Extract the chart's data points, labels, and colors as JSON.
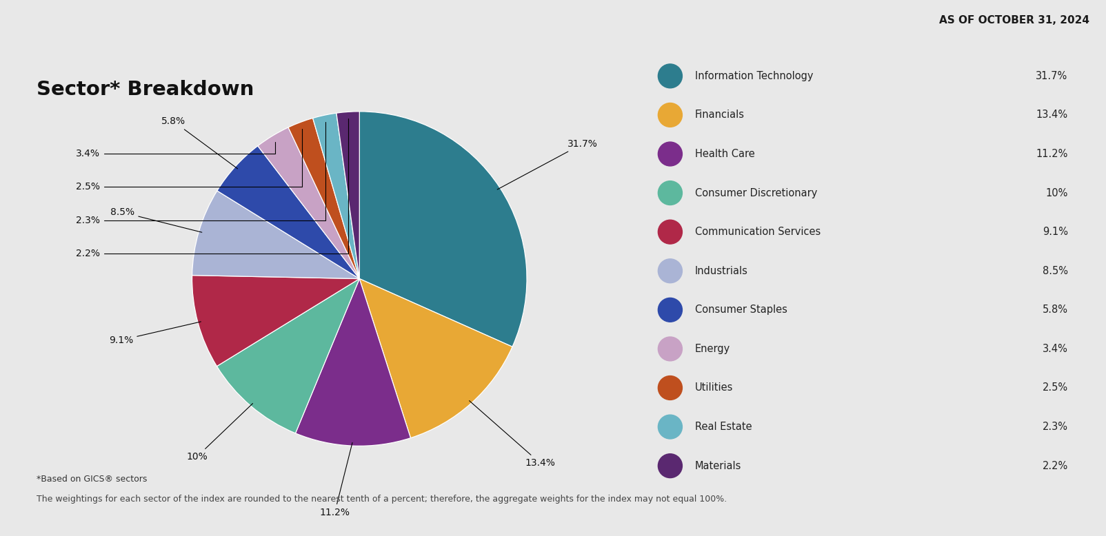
{
  "title": "Sector* Breakdown",
  "header": "AS OF OCTOBER 31, 2024",
  "bg_color": "#e8e8e8",
  "white_color": "#ffffff",
  "sectors": [
    {
      "name": "Information Technology",
      "value": 31.7,
      "color": "#2d7d8e",
      "label": "31.7%"
    },
    {
      "name": "Financials",
      "value": 13.4,
      "color": "#e8a835",
      "label": "13.4%"
    },
    {
      "name": "Health Care",
      "value": 11.2,
      "color": "#7b2d8b",
      "label": "11.2%"
    },
    {
      "name": "Consumer Discretionary",
      "value": 10.0,
      "color": "#5db89e",
      "label": "10%"
    },
    {
      "name": "Communication Services",
      "value": 9.1,
      "color": "#b02848",
      "label": "9.1%"
    },
    {
      "name": "Industrials",
      "value": 8.5,
      "color": "#aab4d5",
      "label": "8.5%"
    },
    {
      "name": "Consumer Staples",
      "value": 5.8,
      "color": "#2e4aaa",
      "label": "5.8%"
    },
    {
      "name": "Energy",
      "value": 3.4,
      "color": "#c8a2c5",
      "label": "3.4%"
    },
    {
      "name": "Utilities",
      "value": 2.5,
      "color": "#bf4f1e",
      "label": "2.5%"
    },
    {
      "name": "Real Estate",
      "value": 2.3,
      "color": "#6ab5c5",
      "label": "2.3%"
    },
    {
      "name": "Materials",
      "value": 2.2,
      "color": "#5a2870",
      "label": "2.2%"
    }
  ],
  "footnote1": "*Based on GICS® sectors",
  "footnote2": "The weightings for each sector of the index are rounded to the nearest tenth of a percent; therefore, the aggregate weights for the index may not equal 100%."
}
